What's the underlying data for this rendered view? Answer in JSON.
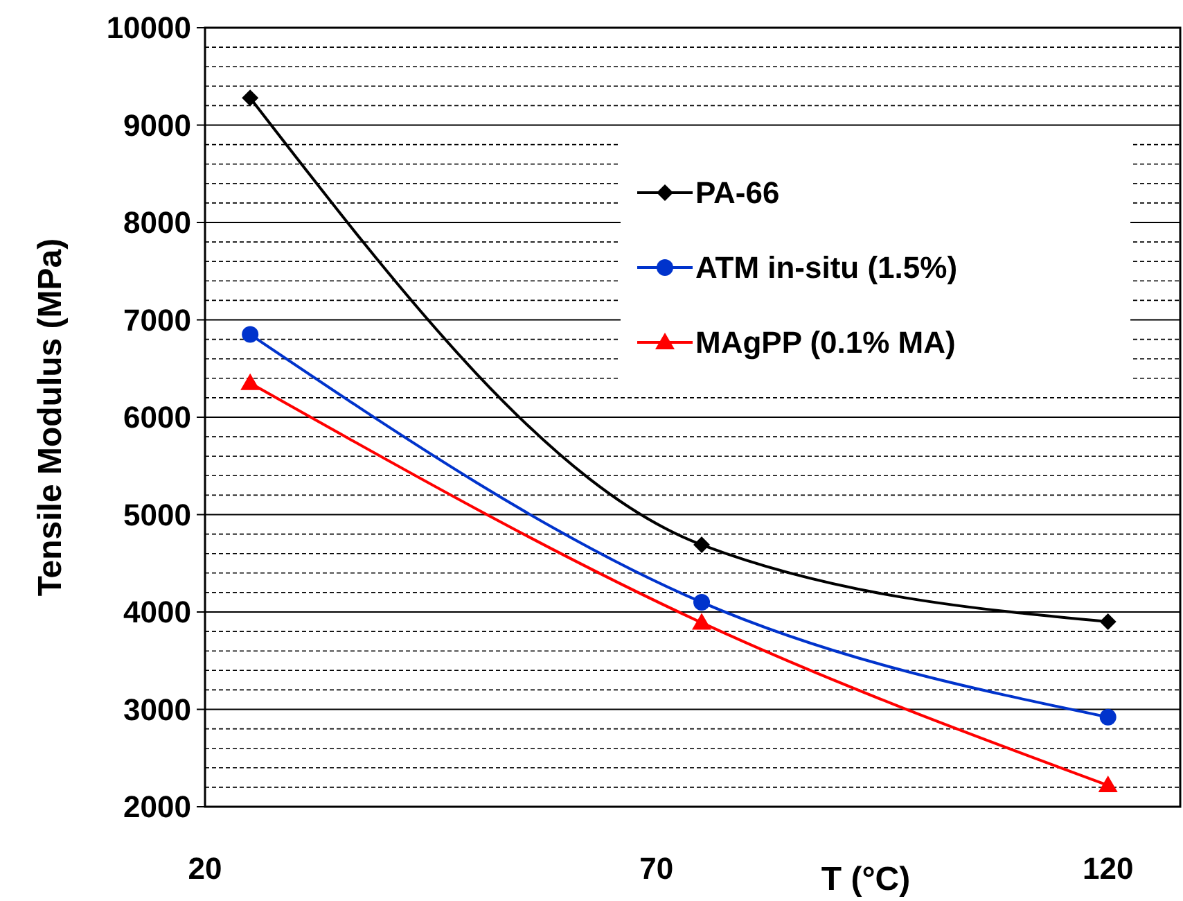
{
  "chart_data": {
    "type": "line",
    "xlabel": "T (°C)",
    "ylabel": "Tensile Modulus (MPa)",
    "xlim": [
      20,
      128
    ],
    "xticks": [
      20,
      70,
      120
    ],
    "ylim": [
      2000,
      10000
    ],
    "yticks": [
      2000,
      3000,
      4000,
      5000,
      6000,
      7000,
      8000,
      9000,
      10000
    ],
    "grid": "y",
    "legend": "top right",
    "line_style": "solid",
    "series": [
      {
        "name": "PA-66",
        "color": "#000000",
        "marker": "diamond",
        "x": [
          25,
          75,
          120
        ],
        "values": [
          9280,
          4690,
          3900
        ]
      },
      {
        "name": "ATM in-situ (1.5%)",
        "color": "#0033cc",
        "marker": "circle",
        "x": [
          25,
          75,
          120
        ],
        "values": [
          6850,
          4100,
          2920
        ]
      },
      {
        "name": "MAgPP (0.1% MA)",
        "color": "#ff0000",
        "marker": "triangle",
        "x": [
          25,
          75,
          120
        ],
        "values": [
          6350,
          3890,
          2220
        ]
      }
    ]
  }
}
